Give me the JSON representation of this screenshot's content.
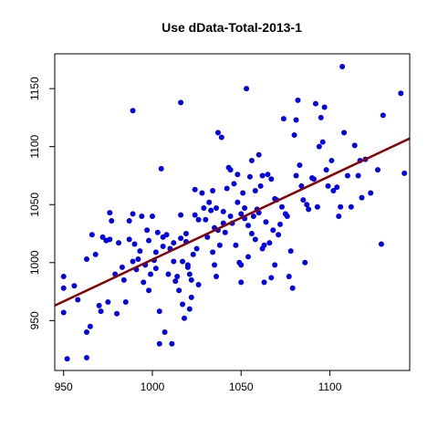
{
  "chart_data": {
    "type": "scatter",
    "title": "Use dData-Total-2013-1",
    "xlabel": "",
    "ylabel": "",
    "xlim": [
      945,
      1145
    ],
    "ylim": [
      907,
      1180
    ],
    "x_ticks": [
      950,
      1000,
      1050,
      1100
    ],
    "y_ticks": [
      950,
      1000,
      1050,
      1100,
      1150
    ],
    "grid": false,
    "legend": "none",
    "colors": {
      "points": "#0000ee",
      "line": "#8b0000",
      "axis": "#000000"
    },
    "regression_line": {
      "x": [
        945,
        1145
      ],
      "y": [
        963,
        1107
      ]
    },
    "series": [
      {
        "values": [
          [
            950,
            978
          ],
          [
            950,
            988
          ],
          [
            950,
            957
          ],
          [
            952,
            917
          ],
          [
            956,
            980
          ],
          [
            958,
            968
          ],
          [
            963,
            1003
          ],
          [
            963,
            918
          ],
          [
            963,
            940
          ],
          [
            965,
            945
          ],
          [
            966,
            1024
          ],
          [
            968,
            1007
          ],
          [
            970,
            963
          ],
          [
            971,
            958
          ],
          [
            972,
            1022
          ],
          [
            974,
            1019
          ],
          [
            975,
            966
          ],
          [
            976,
            1043
          ],
          [
            976,
            1020
          ],
          [
            977,
            1036
          ],
          [
            979,
            990
          ],
          [
            980,
            956
          ],
          [
            981,
            1017
          ],
          [
            983,
            996
          ],
          [
            984,
            985
          ],
          [
            985,
            966
          ],
          [
            987,
            1036
          ],
          [
            987,
            1020
          ],
          [
            989,
            1042
          ],
          [
            989,
            1131
          ],
          [
            989,
            1001
          ],
          [
            990,
            1016
          ],
          [
            991,
            994
          ],
          [
            992,
            1003
          ],
          [
            993,
            1010
          ],
          [
            994,
            1040
          ],
          [
            995,
            983
          ],
          [
            996,
            998
          ],
          [
            997,
            1028
          ],
          [
            998,
            1019
          ],
          [
            998,
            976
          ],
          [
            999,
            990
          ],
          [
            1000,
            1040
          ],
          [
            1001,
            1002
          ],
          [
            1002,
            995
          ],
          [
            1002,
            1009
          ],
          [
            1003,
            1026
          ],
          [
            1004,
            930
          ],
          [
            1004,
            958
          ],
          [
            1005,
            1081
          ],
          [
            1006,
            1014
          ],
          [
            1006,
            1022
          ],
          [
            1007,
            940
          ],
          [
            1008,
            1024
          ],
          [
            1009,
            990
          ],
          [
            1010,
            1012
          ],
          [
            1011,
            930
          ],
          [
            1012,
            1001
          ],
          [
            1012,
            1017
          ],
          [
            1013,
            984
          ],
          [
            1014,
            988
          ],
          [
            1015,
            976
          ],
          [
            1016,
            1041
          ],
          [
            1016,
            1138
          ],
          [
            1016,
            1021
          ],
          [
            1017,
            1001
          ],
          [
            1017,
            964
          ],
          [
            1018,
            952
          ],
          [
            1019,
            1025
          ],
          [
            1019,
            1018
          ],
          [
            1020,
            998
          ],
          [
            1020,
            996
          ],
          [
            1021,
            990
          ],
          [
            1021,
            960
          ],
          [
            1022,
            985
          ],
          [
            1022,
            970
          ],
          [
            1023,
            1007
          ],
          [
            1024,
            1041
          ],
          [
            1024,
            1063
          ],
          [
            1025,
            1012
          ],
          [
            1026,
            1037
          ],
          [
            1026,
            981
          ],
          [
            1028,
            1060
          ],
          [
            1029,
            1047
          ],
          [
            1030,
            1037
          ],
          [
            1031,
            1022
          ],
          [
            1032,
            1052
          ],
          [
            1033,
            1045
          ],
          [
            1034,
            1009
          ],
          [
            1034,
            1062
          ],
          [
            1035,
            1030
          ],
          [
            1035,
            998
          ],
          [
            1036,
            1047
          ],
          [
            1036,
            988
          ],
          [
            1037,
            1028
          ],
          [
            1037,
            1112
          ],
          [
            1038,
            1015
          ],
          [
            1039,
            1108
          ],
          [
            1040,
            1044
          ],
          [
            1040,
            1034
          ],
          [
            1041,
            1026
          ],
          [
            1042,
            1064
          ],
          [
            1043,
            1082
          ],
          [
            1044,
            1080
          ],
          [
            1044,
            1040
          ],
          [
            1045,
            1034
          ],
          [
            1046,
            1068
          ],
          [
            1047,
            1015
          ],
          [
            1048,
            1052
          ],
          [
            1048,
            1076
          ],
          [
            1049,
            1000
          ],
          [
            1050,
            998
          ],
          [
            1050,
            1042
          ],
          [
            1050,
            983
          ],
          [
            1051,
            1060
          ],
          [
            1052,
            1047
          ],
          [
            1052,
            1038
          ],
          [
            1053,
            1150
          ],
          [
            1054,
            1032
          ],
          [
            1054,
            1005
          ],
          [
            1055,
            1074
          ],
          [
            1056,
            1088
          ],
          [
            1056,
            1025
          ],
          [
            1057,
            1040
          ],
          [
            1058,
            1062
          ],
          [
            1058,
            1020
          ],
          [
            1059,
            1046
          ],
          [
            1060,
            1043
          ],
          [
            1060,
            1093
          ],
          [
            1061,
            1066
          ],
          [
            1062,
            1075
          ],
          [
            1062,
            1012
          ],
          [
            1063,
            1015
          ],
          [
            1063,
            983
          ],
          [
            1064,
            1035
          ],
          [
            1065,
            1076
          ],
          [
            1066,
            1017
          ],
          [
            1067,
            987
          ],
          [
            1067,
            1072
          ],
          [
            1068,
            1028
          ],
          [
            1069,
            1055
          ],
          [
            1069,
            998
          ],
          [
            1070,
            1054
          ],
          [
            1071,
            1024
          ],
          [
            1072,
            1033
          ],
          [
            1073,
            1048
          ],
          [
            1074,
            1124
          ],
          [
            1075,
            1042
          ],
          [
            1076,
            1040
          ],
          [
            1077,
            988
          ],
          [
            1078,
            1010
          ],
          [
            1079,
            978
          ],
          [
            1080,
            1110
          ],
          [
            1081,
            1123
          ],
          [
            1081,
            1075
          ],
          [
            1082,
            1140
          ],
          [
            1083,
            1084
          ],
          [
            1084,
            1066
          ],
          [
            1085,
            1054
          ],
          [
            1086,
            1000
          ],
          [
            1087,
            1050
          ],
          [
            1088,
            1046
          ],
          [
            1090,
            1073
          ],
          [
            1091,
            1072
          ],
          [
            1092,
            1137
          ],
          [
            1093,
            1048
          ],
          [
            1094,
            1100
          ],
          [
            1095,
            1125
          ],
          [
            1096,
            1104
          ],
          [
            1097,
            1134
          ],
          [
            1098,
            1080
          ],
          [
            1099,
            1066
          ],
          [
            1101,
            1088
          ],
          [
            1102,
            1062
          ],
          [
            1104,
            1065
          ],
          [
            1105,
            1040
          ],
          [
            1106,
            1048
          ],
          [
            1107,
            1169
          ],
          [
            1108,
            1112
          ],
          [
            1110,
            1075
          ],
          [
            1112,
            1048
          ],
          [
            1114,
            1101
          ],
          [
            1116,
            1075
          ],
          [
            1117,
            1088
          ],
          [
            1118,
            1056
          ],
          [
            1120,
            1089
          ],
          [
            1123,
            1060
          ],
          [
            1127,
            1080
          ],
          [
            1129,
            1016
          ],
          [
            1130,
            1127
          ],
          [
            1140,
            1146
          ],
          [
            1142,
            1077
          ]
        ]
      }
    ]
  }
}
